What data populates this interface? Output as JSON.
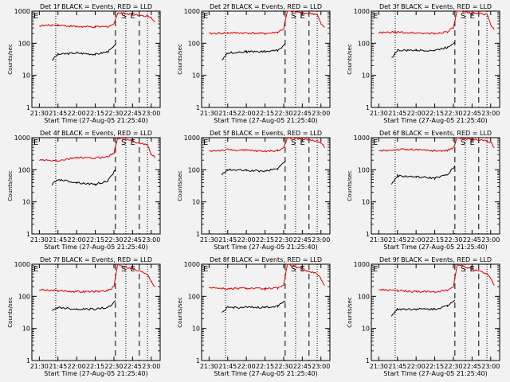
{
  "chart_data": [
    {
      "type": "line",
      "title": "Det 1f BLACK = Events, RED = LLD",
      "ylabel": "Counts/sec",
      "xlabel": "Start Time (27-Aug-05 21:25:40)",
      "yscale": "log",
      "ylim": [
        1,
        1000
      ],
      "xticks": [
        "21:30",
        "21:45",
        "22:00",
        "22:15",
        "22:30",
        "22:45",
        "23:00"
      ],
      "annotations": [
        "E",
        "S",
        "E"
      ],
      "series": [
        {
          "name": "Events",
          "color": "#000000",
          "points": [
            [
              21.67,
              30
            ],
            [
              21.75,
              45
            ],
            [
              22.0,
              50
            ],
            [
              22.25,
              45
            ],
            [
              22.42,
              55
            ],
            [
              22.52,
              85
            ]
          ]
        },
        {
          "name": "LLD",
          "color": "#dd0000",
          "points": [
            [
              21.5,
              350
            ],
            [
              21.75,
              370
            ],
            [
              22.0,
              330
            ],
            [
              22.25,
              320
            ],
            [
              22.42,
              330
            ],
            [
              22.5,
              400
            ],
            [
              22.55,
              900
            ],
            [
              22.95,
              700
            ],
            [
              23.0,
              600
            ],
            [
              23.05,
              450
            ]
          ]
        }
      ]
    },
    {
      "type": "line",
      "title": "Det 2f BLACK = Events, RED = LLD",
      "ylabel": "Counts/sec",
      "xlabel": "Start Time (27-Aug-05 21:25:40)",
      "yscale": "log",
      "ylim": [
        1,
        1000
      ],
      "xticks": [
        "21:30",
        "21:45",
        "22:00",
        "22:15",
        "22:30",
        "22:45",
        "23:00"
      ],
      "annotations": [
        "E",
        "S",
        "E"
      ],
      "series": [
        {
          "name": "Events",
          "color": "#000000",
          "points": [
            [
              21.67,
              30
            ],
            [
              21.75,
              50
            ],
            [
              22.0,
              55
            ],
            [
              22.25,
              55
            ],
            [
              22.42,
              60
            ],
            [
              22.52,
              95
            ]
          ]
        },
        {
          "name": "LLD",
          "color": "#dd0000",
          "points": [
            [
              21.5,
              200
            ],
            [
              21.75,
              210
            ],
            [
              22.0,
              210
            ],
            [
              22.25,
              200
            ],
            [
              22.42,
              220
            ],
            [
              22.5,
              280
            ],
            [
              22.55,
              1000
            ],
            [
              22.95,
              800
            ],
            [
              23.0,
              400
            ],
            [
              23.05,
              300
            ]
          ]
        }
      ]
    },
    {
      "type": "line",
      "title": "Det 3f BLACK = Events, RED = LLD",
      "ylabel": "Counts/sec",
      "xlabel": "Start Time (27-Aug-05 21:25:40)",
      "yscale": "log",
      "ylim": [
        1,
        1000
      ],
      "xticks": [
        "21:30",
        "21:45",
        "22:00",
        "22:15",
        "22:30",
        "22:45",
        "23:00"
      ],
      "annotations": [
        "E",
        "S",
        "E"
      ],
      "series": [
        {
          "name": "Events",
          "color": "#000000",
          "points": [
            [
              21.67,
              35
            ],
            [
              21.75,
              60
            ],
            [
              22.0,
              60
            ],
            [
              22.25,
              60
            ],
            [
              22.42,
              75
            ],
            [
              22.52,
              110
            ]
          ]
        },
        {
          "name": "LLD",
          "color": "#dd0000",
          "points": [
            [
              21.5,
              210
            ],
            [
              21.75,
              220
            ],
            [
              22.0,
              210
            ],
            [
              22.25,
              200
            ],
            [
              22.42,
              230
            ],
            [
              22.5,
              300
            ],
            [
              22.55,
              1000
            ],
            [
              22.95,
              800
            ],
            [
              23.0,
              400
            ],
            [
              23.05,
              250
            ]
          ]
        }
      ]
    },
    {
      "type": "line",
      "title": "Det 4f BLACK = Events, RED = LLD",
      "ylabel": "Counts/sec",
      "xlabel": "Start Time (27-Aug-05 21:25:40)",
      "yscale": "log",
      "ylim": [
        1,
        1000
      ],
      "xticks": [
        "21:30",
        "21:45",
        "22:00",
        "22:15",
        "22:30",
        "22:45",
        "23:00"
      ],
      "annotations": [
        "E",
        "S",
        "E"
      ],
      "series": [
        {
          "name": "Events",
          "color": "#000000",
          "points": [
            [
              21.67,
              35
            ],
            [
              21.75,
              50
            ],
            [
              22.0,
              40
            ],
            [
              22.25,
              35
            ],
            [
              22.42,
              45
            ],
            [
              22.52,
              100
            ]
          ]
        },
        {
          "name": "LLD",
          "color": "#dd0000",
          "points": [
            [
              21.5,
              200
            ],
            [
              21.75,
              190
            ],
            [
              22.0,
              240
            ],
            [
              22.25,
              230
            ],
            [
              22.42,
              260
            ],
            [
              22.5,
              330
            ],
            [
              22.55,
              1000
            ],
            [
              22.95,
              600
            ],
            [
              23.0,
              300
            ],
            [
              23.05,
              250
            ]
          ]
        }
      ]
    },
    {
      "type": "line",
      "title": "Det 5f BLACK = Events, RED = LLD",
      "ylabel": "Counts/sec",
      "xlabel": "Start Time (27-Aug-05 21:25:40)",
      "yscale": "log",
      "ylim": [
        1,
        1000
      ],
      "xticks": [
        "21:30",
        "21:45",
        "22:00",
        "22:15",
        "22:30",
        "22:45",
        "23:00"
      ],
      "annotations": [
        "E",
        "S",
        "E"
      ],
      "series": [
        {
          "name": "Events",
          "color": "#000000",
          "points": [
            [
              21.67,
              70
            ],
            [
              21.75,
              100
            ],
            [
              22.0,
              95
            ],
            [
              22.25,
              90
            ],
            [
              22.42,
              110
            ],
            [
              22.52,
              180
            ]
          ]
        },
        {
          "name": "LLD",
          "color": "#dd0000",
          "points": [
            [
              21.5,
              380
            ],
            [
              21.75,
              420
            ],
            [
              22.0,
              400
            ],
            [
              22.25,
              380
            ],
            [
              22.42,
              400
            ],
            [
              22.5,
              480
            ],
            [
              22.55,
              1000
            ],
            [
              22.95,
              800
            ],
            [
              23.0,
              700
            ],
            [
              23.05,
              500
            ]
          ]
        }
      ]
    },
    {
      "type": "line",
      "title": "Det 6f BLACK = Events, RED = LLD",
      "ylabel": "Counts/sec",
      "xlabel": "Start Time (27-Aug-05 21:25:40)",
      "yscale": "log",
      "ylim": [
        1,
        1000
      ],
      "xticks": [
        "21:30",
        "21:45",
        "22:00",
        "22:15",
        "22:30",
        "22:45",
        "23:00"
      ],
      "annotations": [
        "E",
        "S",
        "E"
      ],
      "series": [
        {
          "name": "Events",
          "color": "#000000",
          "points": [
            [
              21.67,
              35
            ],
            [
              21.75,
              65
            ],
            [
              22.0,
              60
            ],
            [
              22.25,
              55
            ],
            [
              22.42,
              70
            ],
            [
              22.52,
              130
            ]
          ]
        },
        {
          "name": "LLD",
          "color": "#dd0000",
          "points": [
            [
              21.5,
              380
            ],
            [
              21.75,
              430
            ],
            [
              22.0,
              420
            ],
            [
              22.25,
              390
            ],
            [
              22.42,
              400
            ],
            [
              22.5,
              480
            ],
            [
              22.55,
              1000
            ],
            [
              22.95,
              800
            ],
            [
              23.0,
              700
            ],
            [
              23.05,
              500
            ]
          ]
        }
      ]
    },
    {
      "type": "line",
      "title": "Det 7f BLACK = Events, RED = LLD",
      "ylabel": "Counts/sec",
      "xlabel": "Start Time (27-Aug-05 21:25:40)",
      "yscale": "log",
      "ylim": [
        1,
        1000
      ],
      "xticks": [
        "21:30",
        "21:45",
        "22:00",
        "22:15",
        "22:30",
        "22:45",
        "23:00"
      ],
      "annotations": [
        "E",
        "S",
        "E"
      ],
      "series": [
        {
          "name": "Events",
          "color": "#000000",
          "points": [
            [
              21.67,
              35
            ],
            [
              21.75,
              45
            ],
            [
              22.0,
              40
            ],
            [
              22.25,
              40
            ],
            [
              22.42,
              45
            ],
            [
              22.52,
              70
            ]
          ]
        },
        {
          "name": "LLD",
          "color": "#dd0000",
          "points": [
            [
              21.5,
              160
            ],
            [
              21.75,
              150
            ],
            [
              22.0,
              140
            ],
            [
              22.25,
              140
            ],
            [
              22.42,
              150
            ],
            [
              22.5,
              200
            ],
            [
              22.55,
              1000
            ],
            [
              22.95,
              500
            ],
            [
              23.0,
              300
            ],
            [
              23.05,
              200
            ]
          ]
        }
      ]
    },
    {
      "type": "line",
      "title": "Det 8f BLACK = Events, RED = LLD",
      "ylabel": "Counts/sec",
      "xlabel": "Start Time (27-Aug-05 21:25:40)",
      "yscale": "log",
      "ylim": [
        1,
        1000
      ],
      "xticks": [
        "21:30",
        "21:45",
        "22:00",
        "22:15",
        "22:30",
        "22:45",
        "23:00"
      ],
      "annotations": [
        "E",
        "S",
        "E"
      ],
      "series": [
        {
          "name": "Events",
          "color": "#000000",
          "points": [
            [
              21.67,
              30
            ],
            [
              21.75,
              45
            ],
            [
              22.0,
              45
            ],
            [
              22.25,
              45
            ],
            [
              22.42,
              50
            ],
            [
              22.52,
              75
            ]
          ]
        },
        {
          "name": "LLD",
          "color": "#dd0000",
          "points": [
            [
              21.5,
              190
            ],
            [
              21.75,
              170
            ],
            [
              22.0,
              180
            ],
            [
              22.25,
              170
            ],
            [
              22.42,
              180
            ],
            [
              22.5,
              220
            ],
            [
              22.55,
              1000
            ],
            [
              22.95,
              500
            ],
            [
              23.0,
              350
            ],
            [
              23.05,
              220
            ]
          ]
        }
      ]
    },
    {
      "type": "line",
      "title": "Det 9f BLACK = Events, RED = LLD",
      "ylabel": "Counts/sec",
      "xlabel": "Start Time (27-Aug-05 21:25:40)",
      "yscale": "log",
      "ylim": [
        1,
        1000
      ],
      "xticks": [
        "21:30",
        "21:45",
        "22:00",
        "22:15",
        "22:30",
        "22:45",
        "23:00"
      ],
      "annotations": [
        "E",
        "S",
        "E"
      ],
      "series": [
        {
          "name": "Events",
          "color": "#000000",
          "points": [
            [
              21.67,
              25
            ],
            [
              21.75,
              40
            ],
            [
              22.0,
              40
            ],
            [
              22.25,
              40
            ],
            [
              22.42,
              50
            ],
            [
              22.52,
              80
            ]
          ]
        },
        {
          "name": "LLD",
          "color": "#dd0000",
          "points": [
            [
              21.5,
              160
            ],
            [
              21.75,
              150
            ],
            [
              22.0,
              140
            ],
            [
              22.25,
              140
            ],
            [
              22.42,
              150
            ],
            [
              22.5,
              200
            ],
            [
              22.55,
              1000
            ],
            [
              22.95,
              500
            ],
            [
              23.0,
              350
            ],
            [
              23.05,
              220
            ]
          ]
        }
      ]
    }
  ]
}
